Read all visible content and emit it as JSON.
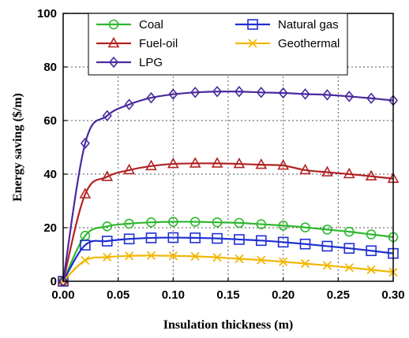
{
  "chart_data": {
    "type": "line",
    "xlabel": "Insulation thickness (m)",
    "ylabel": "Energy saving ($/m)",
    "xlim": [
      0,
      0.3
    ],
    "ylim": [
      0,
      100
    ],
    "xticks": [
      "0.00",
      "0.05",
      "0.10",
      "0.15",
      "0.20",
      "0.25",
      "0.30"
    ],
    "yticks": [
      "0",
      "20",
      "40",
      "60",
      "80",
      "100"
    ],
    "grid": true,
    "legend_position": "top",
    "x": [
      0,
      0.02,
      0.04,
      0.06,
      0.08,
      0.1,
      0.12,
      0.14,
      0.16,
      0.18,
      0.2,
      0.22,
      0.24,
      0.26,
      0.28,
      0.3
    ],
    "series": [
      {
        "name": "Coal",
        "color": "#2eb82e",
        "marker": "circle",
        "values": [
          0,
          17,
          20.5,
          21.5,
          22,
          22.2,
          22.2,
          22,
          21.8,
          21.3,
          20.8,
          20.1,
          19.3,
          18.5,
          17.5,
          16.5
        ]
      },
      {
        "name": "Natural gas",
        "color": "#1f2fd1",
        "marker": "square",
        "values": [
          0,
          13.5,
          15,
          15.8,
          16.2,
          16.3,
          16.2,
          16,
          15.6,
          15.2,
          14.6,
          13.9,
          13.1,
          12.3,
          11.4,
          10.4
        ]
      },
      {
        "name": "Fuel-oil",
        "color": "#b22222",
        "marker": "triangle",
        "values": [
          0,
          32.5,
          39,
          41.5,
          43,
          43.8,
          44,
          44,
          43.8,
          43.5,
          43.2,
          41.5,
          40.7,
          40,
          39.2,
          38.3
        ]
      },
      {
        "name": "Geothermal",
        "color": "#f2b705",
        "marker": "x",
        "values": [
          0,
          7.8,
          9,
          9.5,
          9.6,
          9.5,
          9.3,
          8.9,
          8.4,
          7.9,
          7.3,
          6.6,
          5.9,
          5.1,
          4.3,
          3.4
        ]
      },
      {
        "name": "LPG",
        "color": "#4b2a9e",
        "marker": "diamond",
        "values": [
          0,
          51.5,
          61.8,
          66,
          68.5,
          69.8,
          70.5,
          70.8,
          70.8,
          70.5,
          70.3,
          69.9,
          69.6,
          69,
          68.3,
          67.5
        ]
      }
    ]
  }
}
